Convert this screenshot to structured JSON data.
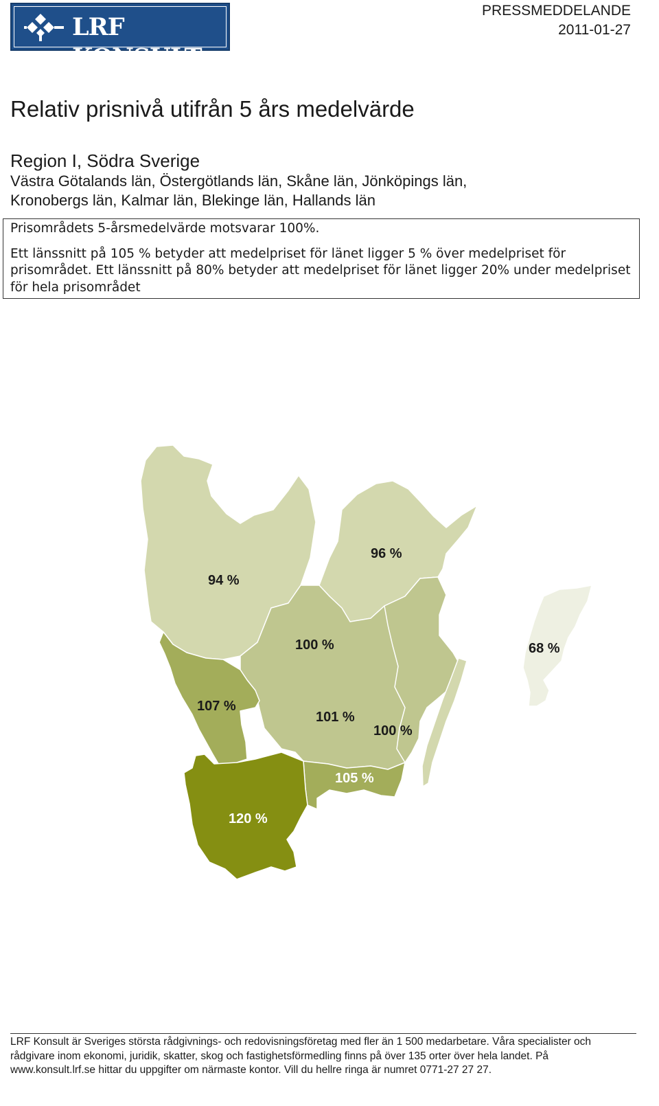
{
  "header": {
    "logo_text": "LRF KONSULT",
    "press_label": "PRESSMEDDELANDE",
    "date": "2011-01-27"
  },
  "title": "Relativ prisnivå utifrån 5 års medelvärde",
  "region": {
    "name": "Region I, Södra Sverige",
    "counties": "Västra Götalands län, Östergötlands län, Skåne län, Jönköpings län, Kronobergs län, Kalmar län, Blekinge län, Hallands län"
  },
  "info": {
    "line1": "Prisområdets 5-årsmedelvärde motsvarar 100%.",
    "line2": "Ett länssnitt på 105 % betyder att medelpriset för länet ligger 5 % över medelpriset för prisområdet. Ett länssnitt på 80% betyder att medelpriset för länet ligger 20% under medelpriset för hela prisområdet"
  },
  "map": {
    "colors": {
      "level_68": "#eef0e2",
      "level_94": "#d3d8ae",
      "level_100": "#bfc68f",
      "level_105": "#a3ad5a",
      "level_120": "#858f12",
      "label_dark": "#1a1a1a",
      "label_light": "#ffffff",
      "border": "#ffffff"
    },
    "labels": {
      "vastra_gotaland": "94 %",
      "ostergotland": "96 %",
      "gotland": "68 %",
      "jonkoping": "100 %",
      "halland": "107 %",
      "kronoberg": "101 %",
      "kalmar": "100 %",
      "blekinge": "105 %",
      "skane": "120 %"
    }
  },
  "footer": "LRF Konsult är Sveriges största rådgivnings- och redovisningsföretag med fler än 1 500 medarbetare. Våra specialister och rådgivare inom ekonomi, juridik, skatter, skog och fastighetsförmedling finns på över 135 orter över hela landet. På www.konsult.lrf.se hittar du uppgifter om närmaste kontor. Vill du hellre ringa är numret 0771-27 27 27."
}
